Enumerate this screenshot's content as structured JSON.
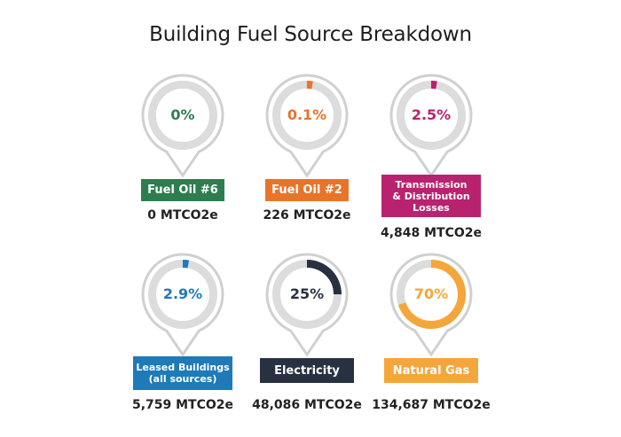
{
  "chart_data": {
    "type": "donut",
    "title": "Building Fuel Source Breakdown",
    "items": [
      {
        "name": "Fuel Oil #6",
        "percent_label": "0%",
        "percent": 0,
        "value_label": "0 MTCO2e",
        "value": 0,
        "color": "#2e7d4f"
      },
      {
        "name": "Fuel Oil #2",
        "percent_label": "0.1%",
        "percent": 0.1,
        "value_label": "226 MTCO2e",
        "value": 226,
        "color": "#e8742a"
      },
      {
        "name": "Transmission & Distribution Losses",
        "percent_label": "2.5%",
        "percent": 2.5,
        "value_label": "4,848 MTCO2e",
        "value": 4848,
        "color": "#b8226e"
      },
      {
        "name": "Leased Buildings (all sources)",
        "percent_label": "2.9%",
        "percent": 2.9,
        "value_label": "5,759 MTCO2e",
        "value": 5759,
        "color": "#1f7ab8"
      },
      {
        "name": "Electricity",
        "percent_label": "25%",
        "percent": 25,
        "value_label": "48,086 MTCO2e",
        "value": 48086,
        "color": "#283142"
      },
      {
        "name": "Natural Gas",
        "percent_label": "70%",
        "percent": 70,
        "value_label": "134,687 MTCO2e",
        "value": 134687,
        "color": "#f5a63b"
      }
    ]
  }
}
